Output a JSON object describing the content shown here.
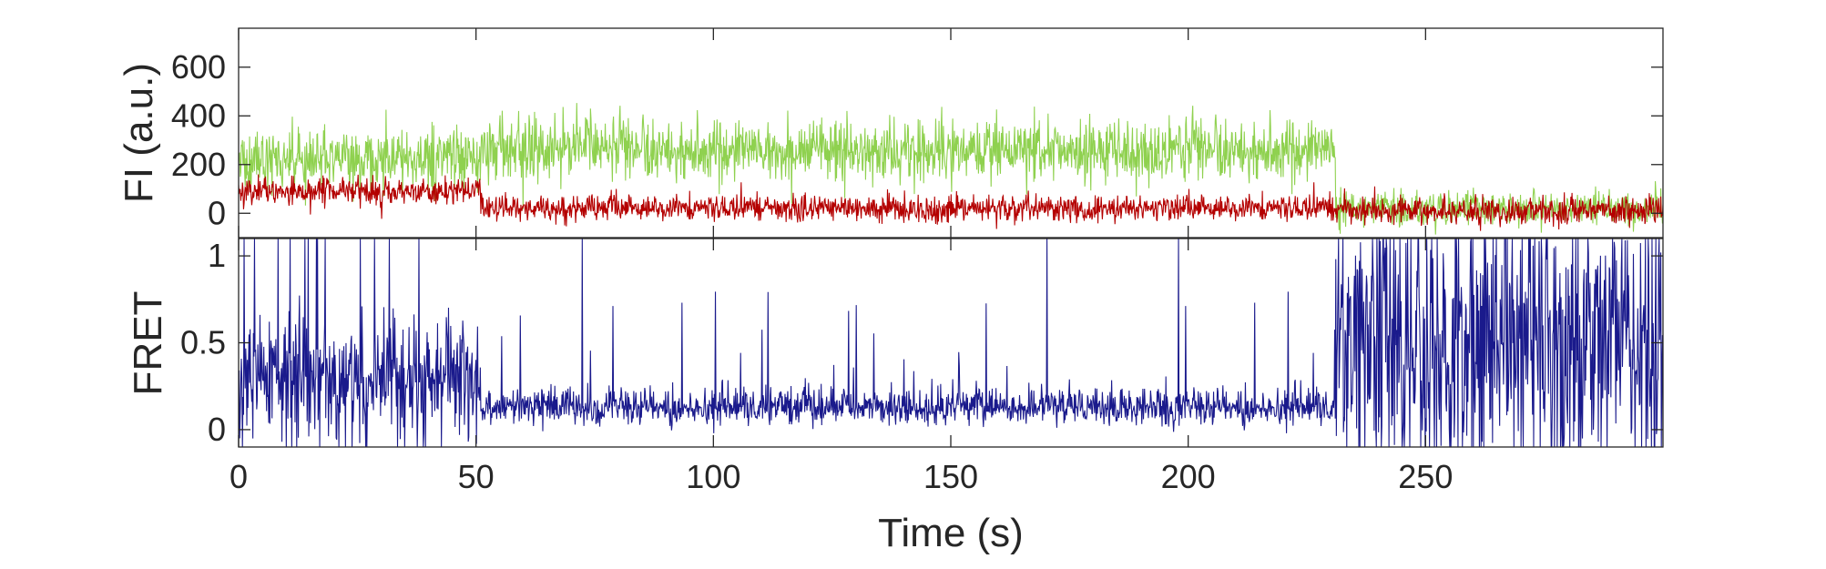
{
  "chart_data": [
    {
      "type": "line",
      "title": "",
      "xlabel": "",
      "ylabel": "FI (a.u.)",
      "xlim": [
        0,
        300
      ],
      "ylim": [
        -100,
        760
      ],
      "grid": false,
      "legend": "none",
      "x_ticks": [
        0,
        50,
        100,
        150,
        200,
        250
      ],
      "y_ticks": [
        0,
        200,
        400,
        600
      ],
      "y_tick_labels": [
        "0",
        "200",
        "400",
        "600"
      ],
      "series_colors": {
        "donor": "#8fd14f",
        "acceptor": "#b40000"
      },
      "segments": [
        {
          "x_range": [
            0,
            51
          ],
          "donor_mean": 220,
          "acceptor_mean": 90
        },
        {
          "x_range": [
            51,
            231
          ],
          "donor_mean": 260,
          "acceptor_mean": 20
        },
        {
          "x_range": [
            231,
            300
          ],
          "donor_mean": 20,
          "acceptor_mean": 10
        }
      ],
      "noise_sd": {
        "donor_high": 65,
        "donor_low": 35,
        "acceptor": 28
      }
    },
    {
      "type": "line",
      "title": "",
      "xlabel": "Time (s)",
      "ylabel": "FRET",
      "xlim": [
        0,
        300
      ],
      "ylim": [
        -0.1,
        1.1
      ],
      "grid": false,
      "legend": "none",
      "x_ticks": [
        0,
        50,
        100,
        150,
        200,
        250
      ],
      "x_tick_labels": [
        "0",
        "50",
        "100",
        "150",
        "200",
        "250"
      ],
      "y_ticks": [
        0,
        0.5,
        1
      ],
      "y_tick_labels": [
        "0",
        "0.5",
        "1"
      ],
      "series_colors": {
        "fret": "#1a1a8c"
      },
      "segments": [
        {
          "x_range": [
            0,
            51
          ],
          "fret_mean": 0.3
        },
        {
          "x_range": [
            51,
            231
          ],
          "fret_mean": 0.08
        },
        {
          "x_range": [
            231,
            300
          ],
          "fret_mean": 0.5
        }
      ]
    }
  ]
}
